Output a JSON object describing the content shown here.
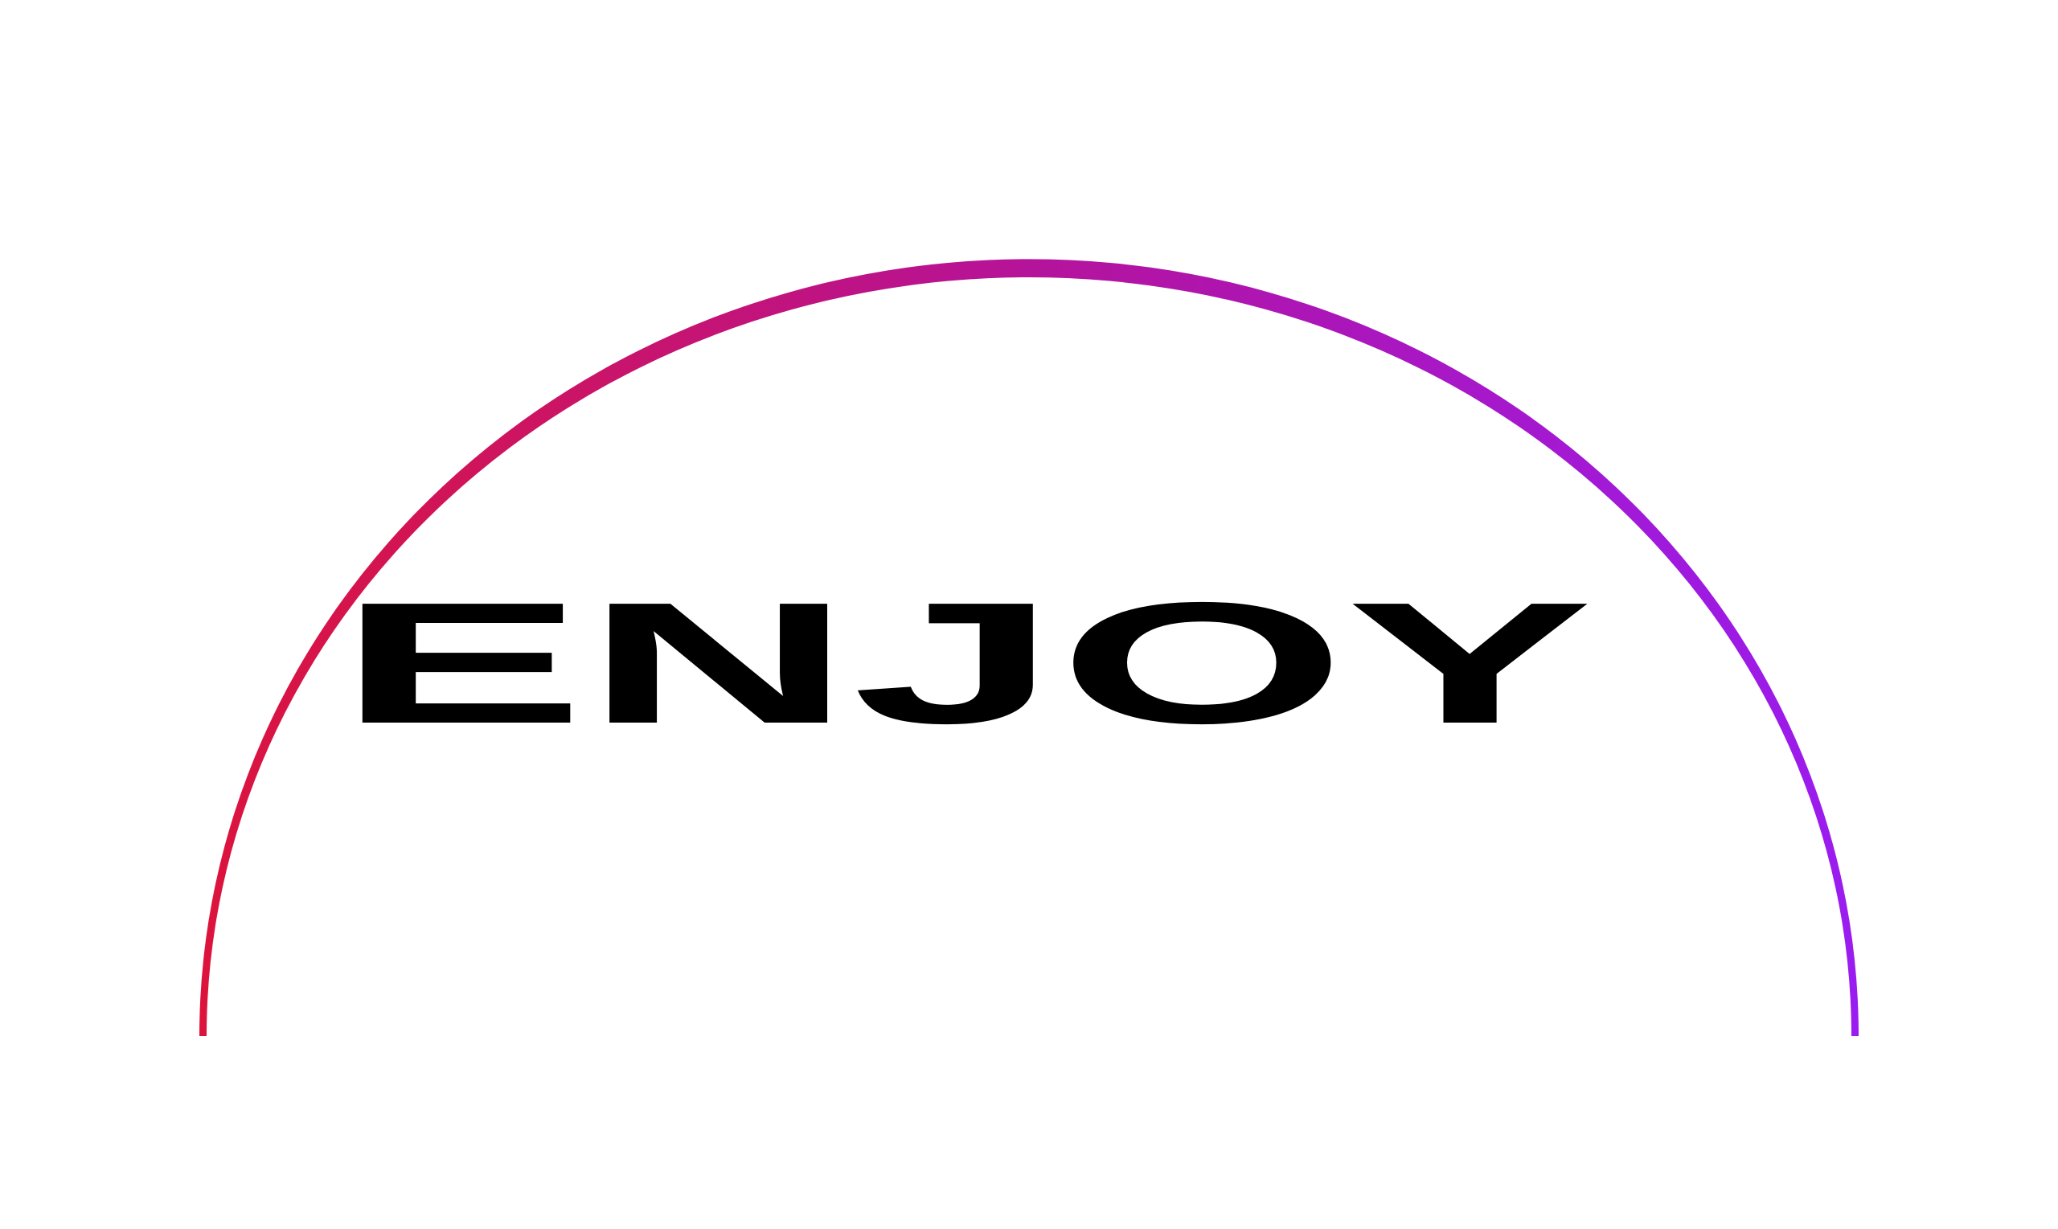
{
  "logo": {
    "wordmark": "ENJOY",
    "colors": {
      "arc_start": "#dc143c",
      "arc_mid": "#b5139a",
      "arc_end": "#9a1cf0",
      "text": "#000000",
      "background": "#ffffff"
    }
  }
}
